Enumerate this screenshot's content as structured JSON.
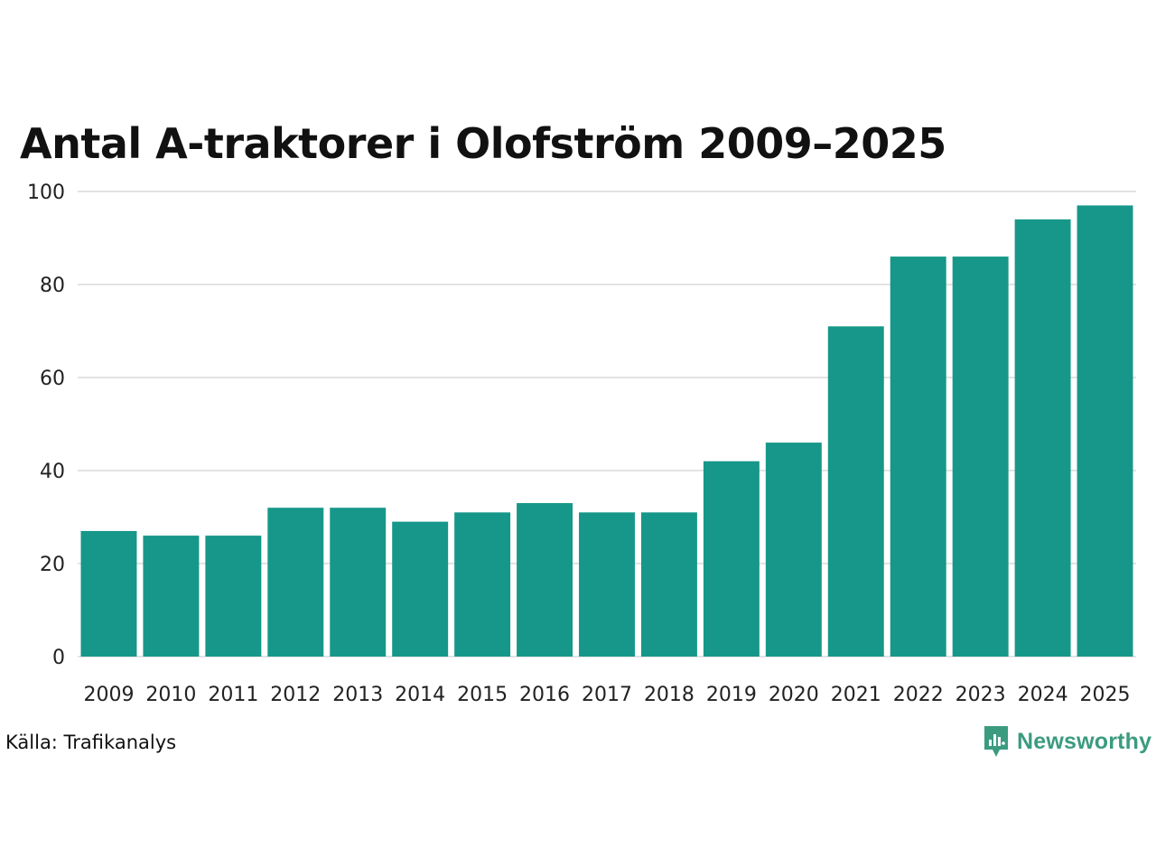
{
  "chart_data": {
    "type": "bar",
    "title": "Antal A-traktorer i Olofström 2009–2025",
    "categories": [
      "2009",
      "2010",
      "2011",
      "2012",
      "2013",
      "2014",
      "2015",
      "2016",
      "2017",
      "2018",
      "2019",
      "2020",
      "2021",
      "2022",
      "2023",
      "2024",
      "2025"
    ],
    "values": [
      27,
      26,
      26,
      32,
      32,
      29,
      31,
      33,
      31,
      31,
      42,
      46,
      71,
      86,
      86,
      94,
      97
    ],
    "yticks": [
      "0",
      "20",
      "40",
      "60",
      "80",
      "100"
    ],
    "ylim": [
      0,
      100
    ],
    "xlabel": "",
    "ylabel": "",
    "grid": true,
    "bar_color": "#169789",
    "grid_color": "#e3e3e3"
  },
  "footer": {
    "source": "Källa: Trafikanalys",
    "brand": "Newsworthy",
    "brand_icon": "newsworthy-logo-icon",
    "brand_color": "#3b9b7f"
  }
}
